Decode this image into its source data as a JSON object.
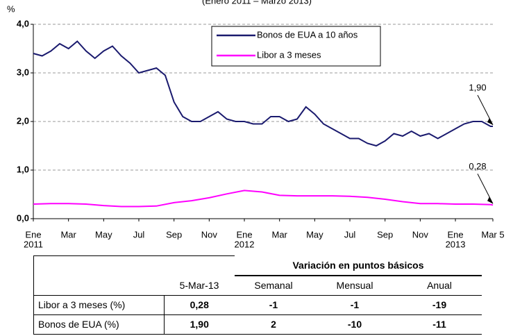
{
  "chart_data": {
    "type": "line",
    "subtitle": "(Enero 2011 – Marzo 2013)",
    "y_unit": "%",
    "xlim": [
      0,
      26.13
    ],
    "xticks": [
      {
        "value": 0,
        "label": "Ene"
      },
      {
        "value": 2,
        "label": "Mar"
      },
      {
        "value": 4,
        "label": "May"
      },
      {
        "value": 6,
        "label": "Jul"
      },
      {
        "value": 8,
        "label": "Sep"
      },
      {
        "value": 10,
        "label": "Nov"
      },
      {
        "value": 12,
        "label": "Ene"
      },
      {
        "value": 14,
        "label": "Mar"
      },
      {
        "value": 16,
        "label": "May"
      },
      {
        "value": 18,
        "label": "Jul"
      },
      {
        "value": 20,
        "label": "Sep"
      },
      {
        "value": 22,
        "label": "Nov"
      },
      {
        "value": 24,
        "label": "Ene"
      },
      {
        "value": 26.13,
        "label": "Mar 5"
      }
    ],
    "year_labels": [
      {
        "value": 0,
        "label": "2011"
      },
      {
        "value": 12,
        "label": "2012"
      },
      {
        "value": 24,
        "label": "2013"
      }
    ],
    "ylim": [
      0,
      4
    ],
    "yticks": [
      {
        "value": 0,
        "label": "0,0"
      },
      {
        "value": 1,
        "label": "1,0"
      },
      {
        "value": 2,
        "label": "2,0"
      },
      {
        "value": 3,
        "label": "3,0"
      },
      {
        "value": 4,
        "label": "4,0"
      }
    ],
    "grid": true,
    "legend": "top",
    "series": [
      {
        "name": "Bonos de EUA a 10 años",
        "color": "#1a1a6e",
        "x": [
          0,
          0.5,
          1,
          1.5,
          2,
          2.5,
          3,
          3.5,
          4,
          4.5,
          5,
          5.5,
          6,
          6.5,
          7,
          7.5,
          8,
          8.5,
          9,
          9.5,
          10,
          10.5,
          11,
          11.5,
          12,
          12.5,
          13,
          13.5,
          14,
          14.5,
          15,
          15.5,
          16,
          16.5,
          17,
          17.5,
          18,
          18.5,
          19,
          19.5,
          20,
          20.5,
          21,
          21.5,
          22,
          22.5,
          23,
          23.5,
          24,
          24.5,
          25,
          25.5,
          26,
          26.13
        ],
        "values": [
          3.4,
          3.35,
          3.45,
          3.6,
          3.5,
          3.65,
          3.45,
          3.3,
          3.45,
          3.55,
          3.35,
          3.2,
          3.0,
          3.05,
          3.1,
          2.95,
          2.4,
          2.1,
          2.0,
          2.0,
          2.1,
          2.2,
          2.05,
          2.0,
          2.0,
          1.95,
          1.95,
          2.1,
          2.1,
          2.0,
          2.05,
          2.3,
          2.15,
          1.95,
          1.85,
          1.75,
          1.65,
          1.65,
          1.55,
          1.5,
          1.6,
          1.75,
          1.7,
          1.8,
          1.7,
          1.75,
          1.65,
          1.75,
          1.85,
          1.95,
          2.0,
          2.0,
          1.9,
          1.9
        ],
        "annotation": "1,90"
      },
      {
        "name": "Libor a 3 meses",
        "color": "#ff00ff",
        "x": [
          0,
          1,
          2,
          3,
          4,
          5,
          6,
          7,
          8,
          9,
          10,
          11,
          12,
          13,
          14,
          15,
          16,
          17,
          18,
          19,
          20,
          21,
          22,
          23,
          24,
          25,
          26,
          26.13
        ],
        "values": [
          0.3,
          0.31,
          0.31,
          0.3,
          0.27,
          0.25,
          0.25,
          0.26,
          0.33,
          0.37,
          0.43,
          0.51,
          0.58,
          0.55,
          0.48,
          0.47,
          0.47,
          0.47,
          0.46,
          0.44,
          0.4,
          0.35,
          0.31,
          0.31,
          0.3,
          0.3,
          0.29,
          0.28
        ],
        "annotation": "0,28"
      }
    ]
  },
  "table": {
    "group_header": "Variación en puntos básicos",
    "columns": [
      "5-Mar-13",
      "Semanal",
      "Mensual",
      "Anual"
    ],
    "rows": [
      {
        "label": "Libor a 3 meses (%)",
        "values": [
          "0,28",
          "-1",
          "-1",
          "-19"
        ]
      },
      {
        "label": "Bonos de EUA (%)",
        "values": [
          "1,90",
          "2",
          "-10",
          "-11"
        ]
      }
    ]
  }
}
